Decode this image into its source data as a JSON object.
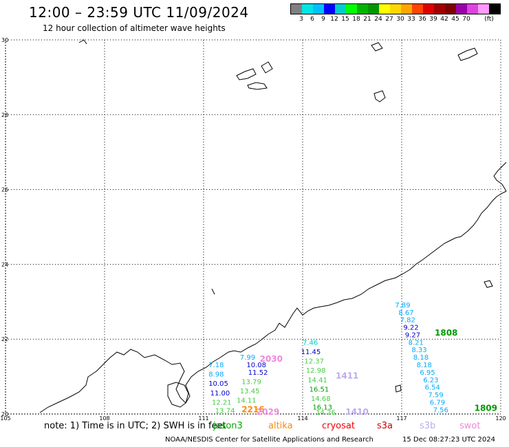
{
  "header": {
    "title": "12:00 – 23:59 UTC 11/09/2024",
    "subtitle": "12 hour collection of altimeter wave heights"
  },
  "legend": {
    "colors": [
      "#808080",
      "#00e5e5",
      "#00bfff",
      "#0000ff",
      "#00cccc",
      "#00ff00",
      "#00b400",
      "#009600",
      "#ffff00",
      "#ffd700",
      "#ffa500",
      "#ff4500",
      "#dd0000",
      "#a00000",
      "#800000",
      "#9900aa",
      "#dd44dd",
      "#ff99ff",
      "#000000"
    ],
    "ticks": [
      "3",
      "6",
      "9",
      "12",
      "15",
      "18",
      "21",
      "24",
      "27",
      "30",
      "33",
      "36",
      "39",
      "42",
      "45",
      "70"
    ],
    "unit": "(ft)"
  },
  "axes": {
    "lon_ticks": [
      "105",
      "108",
      "111",
      "114",
      "117",
      "120"
    ],
    "lat_ticks": [
      "30",
      "28",
      "26",
      "24",
      "22",
      "20"
    ],
    "lon_range": [
      105,
      120
    ],
    "lat_range": [
      20,
      30
    ],
    "grid": true
  },
  "tracks": [
    {
      "time": "2030",
      "color": "#ee88dd",
      "lon": 112.7,
      "lat": 21.4,
      "values": [
        {
          "v": "7.99",
          "lon": 112.1,
          "lat": 21.45,
          "color": "#00aaff"
        },
        {
          "v": "10.08",
          "lon": 112.3,
          "lat": 21.25,
          "color": "#0000cc"
        },
        {
          "v": "11.52",
          "lon": 112.35,
          "lat": 21.05,
          "color": "#0000cc"
        },
        {
          "v": "13.79",
          "lon": 112.15,
          "lat": 20.8,
          "color": "#44cc44"
        },
        {
          "v": "13.45",
          "lon": 112.1,
          "lat": 20.55,
          "color": "#44cc44"
        },
        {
          "v": "14.11",
          "lon": 112.0,
          "lat": 20.3,
          "color": "#44cc44"
        }
      ]
    },
    {
      "time": "",
      "color": "#000000",
      "lon": 0,
      "lat": 0,
      "values": [
        {
          "v": "7.18",
          "lon": 111.15,
          "lat": 21.25,
          "color": "#00aaff"
        },
        {
          "v": "8.98",
          "lon": 111.15,
          "lat": 21.0,
          "color": "#00aaff"
        },
        {
          "v": "10.05",
          "lon": 111.15,
          "lat": 20.75,
          "color": "#0000cc"
        },
        {
          "v": "11.00",
          "lon": 111.2,
          "lat": 20.5,
          "color": "#0000cc"
        },
        {
          "v": "12.21",
          "lon": 111.25,
          "lat": 20.25,
          "color": "#44cc44"
        },
        {
          "v": "13.74",
          "lon": 111.35,
          "lat": 20.03,
          "color": "#44cc44"
        }
      ]
    },
    {
      "time": "2216",
      "color": "#ff8800",
      "lon": 112.15,
      "lat": 20.05,
      "values": []
    },
    {
      "time": "2029",
      "color": "#ee88dd",
      "lon": 112.6,
      "lat": 19.98,
      "values": []
    },
    {
      "time": "1411",
      "color": "#bbaaee",
      "lon": 115.0,
      "lat": 20.95,
      "values": [
        {
          "v": "7.46",
          "lon": 114.0,
          "lat": 21.85,
          "color": "#00cccc"
        },
        {
          "v": "11.45",
          "lon": 113.95,
          "lat": 21.6,
          "color": "#0000cc"
        },
        {
          "v": "12.37",
          "lon": 114.05,
          "lat": 21.35,
          "color": "#44cc44"
        },
        {
          "v": "12.98",
          "lon": 114.1,
          "lat": 21.1,
          "color": "#44cc44"
        },
        {
          "v": "14.41",
          "lon": 114.15,
          "lat": 20.85,
          "color": "#44cc44"
        },
        {
          "v": "16.51",
          "lon": 114.2,
          "lat": 20.6,
          "color": "#009900"
        },
        {
          "v": "14.68",
          "lon": 114.25,
          "lat": 20.35,
          "color": "#44cc44"
        },
        {
          "v": "16.13",
          "lon": 114.3,
          "lat": 20.12,
          "color": "#009900"
        },
        {
          "v": "14.26",
          "lon": 114.4,
          "lat": 19.98,
          "color": "#44cc44"
        }
      ]
    },
    {
      "time": "1410",
      "color": "#bbaaee",
      "lon": 115.3,
      "lat": 19.98,
      "values": []
    },
    {
      "time": "1808",
      "color": "#009900",
      "lon": 118.0,
      "lat": 22.1,
      "values": [
        {
          "v": "7.89",
          "lon": 116.8,
          "lat": 22.85,
          "color": "#00aaff"
        },
        {
          "v": "8.67",
          "lon": 116.9,
          "lat": 22.65,
          "color": "#00aaff"
        },
        {
          "v": "7.82",
          "lon": 116.95,
          "lat": 22.45,
          "color": "#00aaff"
        },
        {
          "v": "9.22",
          "lon": 117.05,
          "lat": 22.25,
          "color": "#0000cc"
        },
        {
          "v": "9.27",
          "lon": 117.1,
          "lat": 22.05,
          "color": "#0000cc"
        },
        {
          "v": "8.21",
          "lon": 117.2,
          "lat": 21.85,
          "color": "#00aaff"
        },
        {
          "v": "8.33",
          "lon": 117.3,
          "lat": 21.65,
          "color": "#00aaff"
        },
        {
          "v": "8.18",
          "lon": 117.35,
          "lat": 21.45,
          "color": "#00aaff"
        },
        {
          "v": "8.18",
          "lon": 117.45,
          "lat": 21.25,
          "color": "#00aaff"
        },
        {
          "v": "6.95",
          "lon": 117.55,
          "lat": 21.05,
          "color": "#00aaff"
        },
        {
          "v": "6.23",
          "lon": 117.65,
          "lat": 20.85,
          "color": "#00aaff"
        },
        {
          "v": "6.54",
          "lon": 117.7,
          "lat": 20.65,
          "color": "#00aaff"
        },
        {
          "v": "7.59",
          "lon": 117.8,
          "lat": 20.45,
          "color": "#00aaff"
        },
        {
          "v": "6.79",
          "lon": 117.85,
          "lat": 20.25,
          "color": "#00aaff"
        },
        {
          "v": "7.56",
          "lon": 117.95,
          "lat": 20.05,
          "color": "#00aaff"
        }
      ]
    },
    {
      "time": "1809",
      "color": "#009900",
      "lon": 119.2,
      "lat": 20.08,
      "values": []
    }
  ],
  "note": "note:  1) Time is in UTC; 2) SWH is in feet",
  "satellites": [
    {
      "name": "jason3",
      "color": "#00aa00"
    },
    {
      "name": "altika",
      "color": "#ff8800"
    },
    {
      "name": "cryosat",
      "color": "#ee0000"
    },
    {
      "name": "s3a",
      "color": "#cc0000"
    },
    {
      "name": "s3b",
      "color": "#bbaaee"
    },
    {
      "name": "swot",
      "color": "#ee88dd"
    }
  ],
  "footer": {
    "credit": "NOAA/NESDIS Center for Satellite Applications and Research",
    "timestamp": "15 Dec 08:27:23 UTC 2024"
  }
}
